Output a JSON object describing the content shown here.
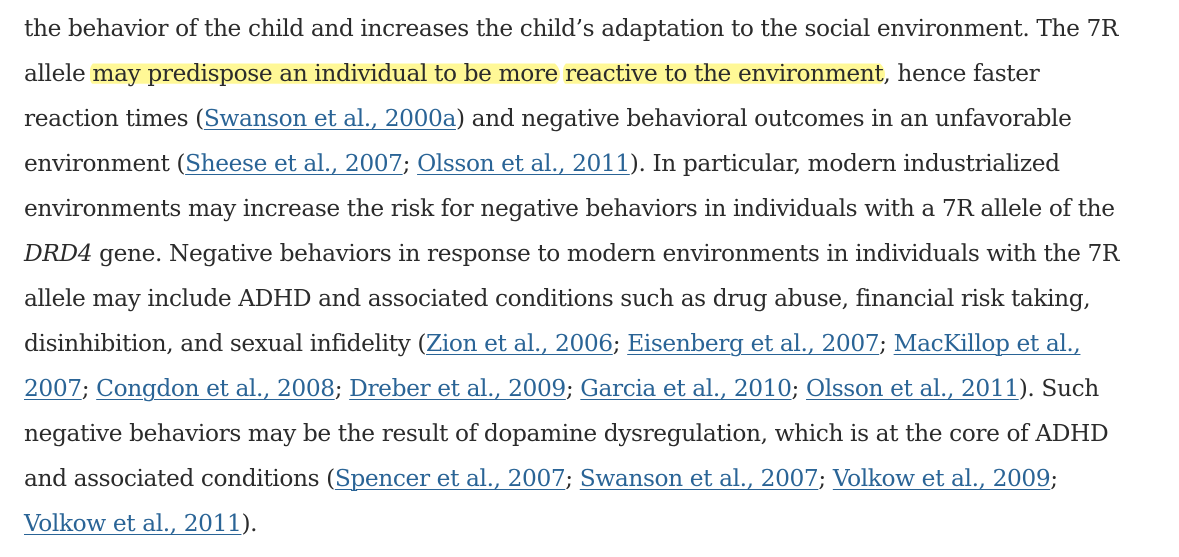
{
  "lines": [
    [
      {
        "t": "the behavior of the child and increases the child’s adaptation to the social environment. The 7R"
      }
    ],
    [
      {
        "t": "allele "
      },
      {
        "t": "may predispose an individual to be more",
        "hl": true
      },
      {
        "t": " "
      },
      {
        "t": "reactive to the environment",
        "hl": true
      },
      {
        "t": ", hence faster"
      }
    ],
    [
      {
        "t": "reaction times ("
      },
      {
        "t": "Swanson et al., 2000a",
        "cite": true
      },
      {
        "t": ") and negative behavioral outcomes in an unfavorable"
      }
    ],
    [
      {
        "t": "environment ("
      },
      {
        "t": "Sheese et al., 2007",
        "cite": true
      },
      {
        "t": "; "
      },
      {
        "t": "Olsson et al., 2011",
        "cite": true
      },
      {
        "t": "). In particular, modern industrialized"
      }
    ],
    [
      {
        "t": "environments may increase the risk for negative behaviors in individuals with a 7R allele of the"
      }
    ],
    [
      {
        "t": "DRD4",
        "it": true
      },
      {
        "t": " gene. Negative behaviors in response to modern environments in individuals with the 7R"
      }
    ],
    [
      {
        "t": "allele may include ADHD and associated conditions such as drug abuse, financial risk taking,"
      }
    ],
    [
      {
        "t": "disinhibition, and sexual infidelity ("
      },
      {
        "t": "Zion et al., 2006",
        "cite": true
      },
      {
        "t": "; "
      },
      {
        "t": "Eisenberg et al., 2007",
        "cite": true
      },
      {
        "t": "; "
      },
      {
        "t": "MacKillop et al.,",
        "cite": true
      }
    ],
    [
      {
        "t": "2007",
        "cite": true
      },
      {
        "t": "; "
      },
      {
        "t": "Congdon et al., 2008",
        "cite": true
      },
      {
        "t": "; "
      },
      {
        "t": "Dreber et al., 2009",
        "cite": true
      },
      {
        "t": "; "
      },
      {
        "t": "Garcia et al., 2010",
        "cite": true
      },
      {
        "t": "; "
      },
      {
        "t": "Olsson et al., 2011",
        "cite": true
      },
      {
        "t": "). Such"
      }
    ],
    [
      {
        "t": "negative behaviors may be the result of dopamine dysregulation, which is at the core of ADHD"
      }
    ],
    [
      {
        "t": "and associated conditions ("
      },
      {
        "t": "Spencer et al., 2007",
        "cite": true
      },
      {
        "t": "; "
      },
      {
        "t": "Swanson et al., 2007",
        "cite": true
      },
      {
        "t": "; "
      },
      {
        "t": "Volkow et al., 2009",
        "cite": true
      },
      {
        "t": ";"
      }
    ],
    [
      {
        "t": "Volkow et al., 2011",
        "cite": true
      },
      {
        "t": ")."
      }
    ]
  ]
}
